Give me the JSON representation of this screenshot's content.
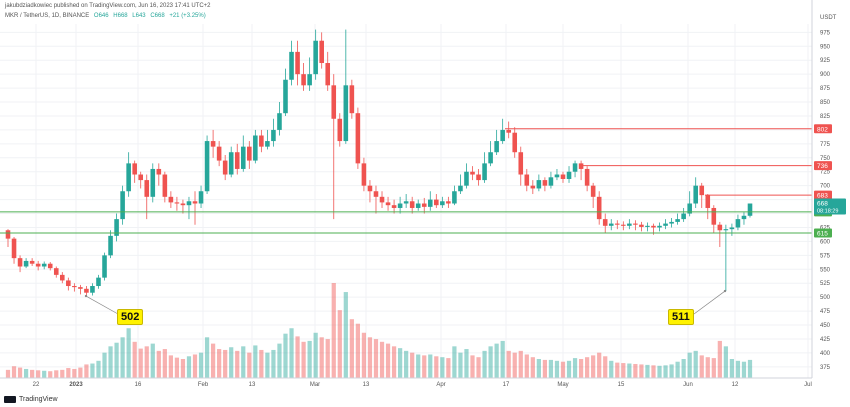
{
  "header": {
    "publisher": "jakubdziadkowiec published on TradingView.com, Jun 16, 2023 17:41 UTC+2",
    "symbol": "MKR / TetherUS, 1D, BINANCE",
    "ohlc": [
      "O646",
      "H668",
      "L643",
      "C668",
      "+21 (+3.25%)"
    ]
  },
  "branding": {
    "logo_text": "TradingView"
  },
  "colors": {
    "up": "#26a69a",
    "down": "#ef5350",
    "support": "#4caf50",
    "resistance": "#ef5350"
  },
  "chart_data": {
    "type": "candlestick",
    "yunit": "USDT",
    "ylim": [
      355,
      990
    ],
    "yticks": [
      375,
      400,
      425,
      450,
      475,
      500,
      525,
      550,
      575,
      600,
      625,
      650,
      675,
      700,
      725,
      750,
      775,
      800,
      825,
      850,
      875,
      900,
      925,
      950,
      975
    ],
    "xticks": [
      "22",
      "2023",
      "16",
      "Feb",
      "13",
      "Mar",
      "13",
      "Apr",
      "17",
      "May",
      "15",
      "Jun",
      "12",
      "Jul"
    ],
    "horizontal_lines": [
      {
        "value": 802,
        "label": "802",
        "kind": "resistance"
      },
      {
        "value": 736,
        "label": "736",
        "kind": "resistance"
      },
      {
        "value": 683,
        "label": "683",
        "kind": "resistance"
      },
      {
        "value": 653,
        "label": "653",
        "kind": "support"
      },
      {
        "value": 615,
        "label": "615",
        "kind": "support"
      }
    ],
    "price_tag": {
      "value": 668,
      "label": "668",
      "countdown": "08:18:29"
    },
    "annotations": [
      {
        "label": "502",
        "value": 502
      },
      {
        "label": "511",
        "value": 511
      }
    ],
    "candles": [
      [
        620,
        605,
        622,
        590,
        180
      ],
      [
        605,
        570,
        608,
        560,
        260
      ],
      [
        570,
        555,
        575,
        545,
        230
      ],
      [
        555,
        565,
        570,
        552,
        200
      ],
      [
        565,
        560,
        570,
        556,
        180
      ],
      [
        560,
        555,
        565,
        548,
        170
      ],
      [
        555,
        560,
        564,
        550,
        160
      ],
      [
        560,
        552,
        563,
        548,
        150
      ],
      [
        552,
        540,
        555,
        535,
        170
      ],
      [
        540,
        530,
        545,
        525,
        180
      ],
      [
        530,
        520,
        535,
        512,
        220
      ],
      [
        520,
        518,
        525,
        510,
        200
      ],
      [
        518,
        515,
        522,
        505,
        230
      ],
      [
        515,
        508,
        520,
        502,
        300
      ],
      [
        508,
        520,
        525,
        503,
        320
      ],
      [
        520,
        535,
        540,
        515,
        380
      ],
      [
        535,
        575,
        580,
        530,
        560
      ],
      [
        575,
        610,
        620,
        570,
        700
      ],
      [
        610,
        640,
        650,
        600,
        780
      ],
      [
        640,
        690,
        700,
        630,
        900
      ],
      [
        690,
        740,
        760,
        680,
        1100
      ],
      [
        740,
        720,
        745,
        705,
        800
      ],
      [
        720,
        710,
        725,
        695,
        650
      ],
      [
        710,
        680,
        720,
        640,
        700
      ],
      [
        680,
        730,
        740,
        670,
        760
      ],
      [
        730,
        720,
        740,
        700,
        600
      ],
      [
        720,
        680,
        725,
        670,
        640
      ],
      [
        680,
        670,
        690,
        660,
        500
      ],
      [
        670,
        668,
        680,
        655,
        450
      ],
      [
        668,
        665,
        675,
        650,
        420
      ],
      [
        665,
        672,
        680,
        640,
        480
      ],
      [
        672,
        668,
        690,
        630,
        520
      ],
      [
        668,
        690,
        700,
        660,
        560
      ],
      [
        690,
        780,
        790,
        685,
        900
      ],
      [
        780,
        770,
        800,
        750,
        760
      ],
      [
        770,
        745,
        780,
        735,
        640
      ],
      [
        745,
        720,
        755,
        710,
        620
      ],
      [
        720,
        760,
        770,
        715,
        680
      ],
      [
        760,
        730,
        775,
        720,
        600
      ],
      [
        730,
        770,
        790,
        725,
        700
      ],
      [
        770,
        745,
        780,
        730,
        560
      ],
      [
        745,
        790,
        800,
        740,
        720
      ],
      [
        790,
        770,
        800,
        760,
        620
      ],
      [
        770,
        780,
        800,
        765,
        560
      ],
      [
        780,
        800,
        820,
        770,
        620
      ],
      [
        800,
        830,
        850,
        790,
        760
      ],
      [
        830,
        890,
        910,
        825,
        980
      ],
      [
        890,
        940,
        960,
        880,
        1100
      ],
      [
        940,
        900,
        960,
        880,
        920
      ],
      [
        900,
        880,
        920,
        870,
        800
      ],
      [
        880,
        900,
        930,
        870,
        820
      ],
      [
        900,
        960,
        980,
        890,
        1000
      ],
      [
        960,
        920,
        975,
        910,
        900
      ],
      [
        920,
        880,
        940,
        870,
        860
      ],
      [
        880,
        820,
        900,
        640,
        2100
      ],
      [
        820,
        780,
        830,
        770,
        1500
      ],
      [
        780,
        880,
        980,
        775,
        1900
      ],
      [
        880,
        830,
        890,
        820,
        1300
      ],
      [
        830,
        740,
        840,
        730,
        1200
      ],
      [
        740,
        700,
        750,
        690,
        1000
      ],
      [
        700,
        690,
        710,
        670,
        900
      ],
      [
        690,
        680,
        700,
        650,
        860
      ],
      [
        680,
        670,
        690,
        660,
        800
      ],
      [
        670,
        665,
        680,
        655,
        760
      ],
      [
        665,
        660,
        675,
        650,
        700
      ],
      [
        660,
        668,
        680,
        650,
        660
      ],
      [
        668,
        672,
        685,
        660,
        600
      ],
      [
        672,
        660,
        680,
        650,
        560
      ],
      [
        660,
        668,
        675,
        655,
        520
      ],
      [
        668,
        662,
        678,
        650,
        500
      ],
      [
        662,
        675,
        690,
        655,
        520
      ],
      [
        675,
        665,
        685,
        660,
        480
      ],
      [
        665,
        672,
        680,
        660,
        460
      ],
      [
        672,
        668,
        680,
        660,
        440
      ],
      [
        668,
        690,
        700,
        665,
        700
      ],
      [
        690,
        700,
        720,
        685,
        560
      ],
      [
        700,
        725,
        740,
        695,
        640
      ],
      [
        725,
        720,
        735,
        710,
        500
      ],
      [
        720,
        710,
        730,
        700,
        460
      ],
      [
        710,
        740,
        760,
        705,
        600
      ],
      [
        740,
        760,
        780,
        735,
        700
      ],
      [
        760,
        780,
        800,
        755,
        760
      ],
      [
        780,
        800,
        820,
        775,
        820
      ],
      [
        800,
        795,
        815,
        785,
        600
      ],
      [
        795,
        760,
        805,
        750,
        560
      ],
      [
        760,
        720,
        770,
        700,
        600
      ],
      [
        720,
        700,
        730,
        690,
        520
      ],
      [
        700,
        695,
        710,
        685,
        460
      ],
      [
        695,
        710,
        720,
        690,
        420
      ],
      [
        710,
        700,
        715,
        690,
        400
      ],
      [
        700,
        715,
        725,
        695,
        400
      ],
      [
        715,
        720,
        730,
        710,
        380
      ],
      [
        720,
        712,
        725,
        705,
        360
      ],
      [
        712,
        725,
        735,
        705,
        380
      ],
      [
        725,
        740,
        745,
        715,
        440
      ],
      [
        740,
        730,
        745,
        710,
        420
      ],
      [
        730,
        700,
        735,
        690,
        460
      ],
      [
        700,
        680,
        705,
        660,
        500
      ],
      [
        680,
        640,
        690,
        630,
        560
      ],
      [
        640,
        628,
        650,
        615,
        480
      ],
      [
        628,
        632,
        640,
        620,
        380
      ],
      [
        632,
        630,
        638,
        622,
        340
      ],
      [
        630,
        628,
        636,
        620,
        330
      ],
      [
        628,
        632,
        640,
        622,
        320
      ],
      [
        632,
        630,
        638,
        620,
        310
      ],
      [
        630,
        626,
        635,
        618,
        300
      ],
      [
        626,
        628,
        634,
        618,
        290
      ],
      [
        628,
        625,
        632,
        612,
        280
      ],
      [
        625,
        628,
        634,
        618,
        270
      ],
      [
        628,
        632,
        640,
        622,
        280
      ],
      [
        632,
        635,
        642,
        625,
        300
      ],
      [
        635,
        640,
        650,
        630,
        360
      ],
      [
        640,
        650,
        660,
        635,
        420
      ],
      [
        650,
        668,
        690,
        645,
        560
      ],
      [
        668,
        700,
        715,
        660,
        600
      ],
      [
        700,
        683,
        705,
        660,
        500
      ],
      [
        683,
        660,
        685,
        640,
        460
      ],
      [
        660,
        630,
        665,
        615,
        440
      ],
      [
        630,
        620,
        635,
        590,
        820
      ],
      [
        620,
        622,
        630,
        511,
        700
      ],
      [
        622,
        625,
        632,
        610,
        420
      ],
      [
        625,
        640,
        648,
        620,
        380
      ],
      [
        640,
        646,
        652,
        630,
        360
      ],
      [
        646,
        668,
        668,
        643,
        400
      ]
    ]
  }
}
